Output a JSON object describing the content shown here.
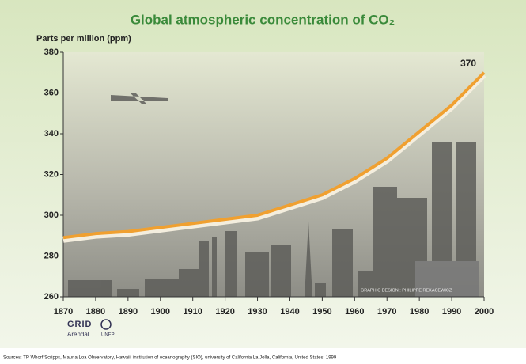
{
  "chart_data": {
    "type": "line",
    "title": "Global atmospheric concentration of CO₂",
    "y_label": "Parts per million (ppm)",
    "x": [
      1870,
      1880,
      1890,
      1900,
      1910,
      1920,
      1930,
      1940,
      1950,
      1960,
      1970,
      1980,
      1990,
      2000
    ],
    "series": [
      {
        "color": "#f0a030",
        "values": [
          289,
          291,
          292,
          294,
          296,
          298,
          300,
          305,
          310,
          318,
          328,
          341,
          354,
          370
        ]
      }
    ],
    "xlim": [
      1870,
      2000
    ],
    "xticks": [
      1870,
      1880,
      1890,
      1900,
      1910,
      1920,
      1930,
      1940,
      1950,
      1960,
      1970,
      1980,
      1990,
      2000
    ],
    "ylim": [
      260,
      380
    ],
    "yticks": [
      260,
      280,
      300,
      320,
      340,
      360,
      380
    ],
    "grid": false,
    "credit": "GRAPHIC DESIGN : PHILIPPE REKACEWICZ"
  },
  "logos": [
    "GRID",
    "Arendal",
    "UNEP"
  ],
  "source": "Sources: TP Whorf  Scripps, Mauna Loa Observatory, Hawaii, institution of oceanography (SIO), university of California La Jolla, California, United States, 1999"
}
